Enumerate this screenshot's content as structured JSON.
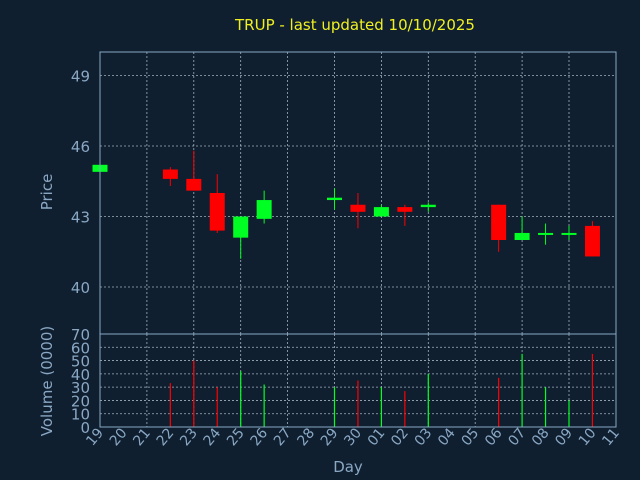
{
  "chart_data": {
    "type": "candlestick",
    "title": "TRUP - last updated 10/10/2025",
    "xlabel": "Day",
    "price_panel": {
      "ylabel": "Price",
      "ylim": [
        38.0,
        50.0
      ],
      "yticks": [
        40,
        43,
        46,
        49
      ],
      "grid": true
    },
    "volume_panel": {
      "ylabel": "Volume (0000)",
      "ylim": [
        0,
        70
      ],
      "yticks": [
        0,
        10,
        20,
        30,
        40,
        50,
        60,
        70
      ],
      "grid": true
    },
    "day_labels": [
      "19",
      "20",
      "21",
      "22",
      "23",
      "24",
      "25",
      "26",
      "27",
      "28",
      "29",
      "30",
      "01",
      "02",
      "03",
      "04",
      "05",
      "06",
      "07",
      "08",
      "09",
      "10",
      "11"
    ],
    "colors": {
      "up": "#00ff22",
      "down": "#ff0000",
      "axis": "#8aa8c4",
      "grid": "#c8d4e0",
      "title": "#f0f020",
      "background": "#0f1f30"
    },
    "candles": [
      {
        "day": "19",
        "open": 44.9,
        "high": 45.2,
        "low": 44.9,
        "close": 45.2,
        "volume": 0
      },
      {
        "day": "22",
        "open": 45.0,
        "high": 45.1,
        "low": 44.3,
        "close": 44.6,
        "volume": 33
      },
      {
        "day": "23",
        "open": 44.6,
        "high": 45.8,
        "low": 44.1,
        "close": 44.1,
        "volume": 50
      },
      {
        "day": "24",
        "open": 44.0,
        "high": 44.8,
        "low": 42.3,
        "close": 42.4,
        "volume": 30
      },
      {
        "day": "25",
        "open": 42.1,
        "high": 43.0,
        "low": 41.2,
        "close": 43.0,
        "volume": 42
      },
      {
        "day": "26",
        "open": 42.9,
        "high": 44.1,
        "low": 42.7,
        "close": 43.7,
        "volume": 32
      },
      {
        "day": "29",
        "open": 43.7,
        "high": 44.2,
        "low": 43.3,
        "close": 43.8,
        "volume": 30
      },
      {
        "day": "30",
        "open": 43.5,
        "high": 44.0,
        "low": 42.5,
        "close": 43.2,
        "volume": 35
      },
      {
        "day": "01",
        "open": 43.0,
        "high": 43.5,
        "low": 43.0,
        "close": 43.4,
        "volume": 30
      },
      {
        "day": "02",
        "open": 43.4,
        "high": 43.5,
        "low": 42.6,
        "close": 43.2,
        "volume": 27
      },
      {
        "day": "03",
        "open": 43.4,
        "high": 43.6,
        "low": 43.2,
        "close": 43.5,
        "volume": 40
      },
      {
        "day": "06",
        "open": 43.5,
        "high": 43.5,
        "low": 41.5,
        "close": 42.0,
        "volume": 37
      },
      {
        "day": "07",
        "open": 42.0,
        "high": 43.0,
        "low": 42.0,
        "close": 42.3,
        "volume": 55
      },
      {
        "day": "08",
        "open": 42.3,
        "high": 42.7,
        "low": 41.8,
        "close": 42.3,
        "volume": 30
      },
      {
        "day": "09",
        "open": 42.3,
        "high": 42.6,
        "low": 42.0,
        "close": 42.3,
        "volume": 20
      },
      {
        "day": "10",
        "open": 42.6,
        "high": 42.8,
        "low": 41.3,
        "close": 41.3,
        "volume": 55
      }
    ]
  }
}
